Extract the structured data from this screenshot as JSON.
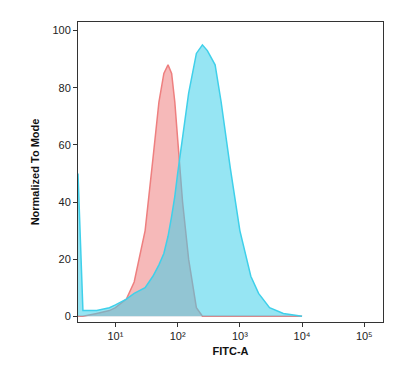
{
  "chart_data": {
    "type": "area",
    "x_label": "FITC-A",
    "y_label": "Normalized To Mode",
    "log": "x",
    "grid": false,
    "x": [
      2.5,
      3,
      5,
      8,
      10,
      15,
      20,
      30,
      40,
      50,
      60,
      70,
      80,
      90,
      100,
      120,
      150,
      200,
      250,
      300,
      400,
      500,
      700,
      1000,
      1500,
      2000,
      3000,
      5000,
      7000,
      10000
    ],
    "series": [
      {
        "color": "#ee7f7f",
        "values": [
          0,
          0,
          1,
          2,
          3,
          6,
          12,
          30,
          55,
          75,
          85,
          88,
          85,
          75,
          62,
          40,
          20,
          3,
          0,
          0,
          0,
          0,
          0,
          0,
          0,
          0,
          0,
          0,
          0,
          0
        ]
      },
      {
        "color": "#3fd0ea",
        "values": [
          50,
          2,
          2,
          3,
          4,
          6,
          8,
          10,
          14,
          18,
          22,
          28,
          35,
          42,
          50,
          62,
          78,
          92,
          95,
          93,
          88,
          75,
          52,
          30,
          14,
          8,
          3,
          1,
          0.5,
          0
        ]
      }
    ],
    "xlim": [
      2.5,
      200000
    ],
    "xticks": [
      {
        "value": 10,
        "label": "10¹"
      },
      {
        "value": 100,
        "label": "10²"
      },
      {
        "value": 1000,
        "label": "10³"
      },
      {
        "value": 10000,
        "label": "10⁴"
      },
      {
        "value": 100000,
        "label": "10⁵"
      }
    ],
    "ylim": [
      -2,
      103
    ],
    "yticks": [
      0,
      20,
      40,
      60,
      80,
      100
    ]
  }
}
